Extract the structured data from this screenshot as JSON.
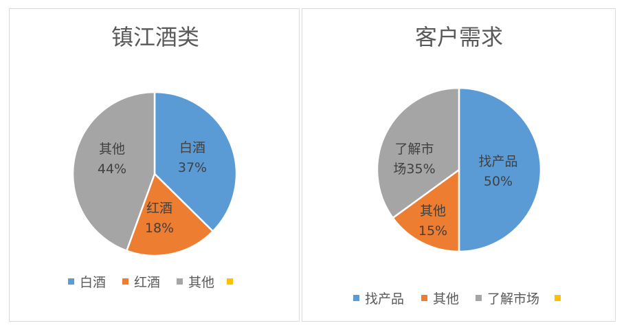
{
  "chart_data": [
    {
      "type": "pie",
      "title": "镇江酒类",
      "categories": [
        "白酒",
        "红酒",
        "其他"
      ],
      "values": [
        37,
        18,
        44
      ],
      "value_labels": [
        "37%",
        "18%",
        "44%"
      ],
      "colors": [
        "#5b9bd5",
        "#ed7d31",
        "#a5a5a5"
      ],
      "legend": {
        "position": "bottom",
        "entries": [
          {
            "label": "白酒",
            "color": "#5b9bd5"
          },
          {
            "label": "红酒",
            "color": "#ed7d31"
          },
          {
            "label": "其他",
            "color": "#a5a5a5"
          },
          {
            "label": "",
            "color": "#ffc000"
          }
        ]
      }
    },
    {
      "type": "pie",
      "title": "客户需求",
      "categories": [
        "找产品",
        "其他",
        "了解市场"
      ],
      "values": [
        50,
        15,
        35
      ],
      "value_labels": [
        "50%",
        "15%",
        "35%"
      ],
      "colors": [
        "#5b9bd5",
        "#ed7d31",
        "#a5a5a5"
      ],
      "legend": {
        "position": "bottom",
        "entries": [
          {
            "label": "找产品",
            "color": "#5b9bd5"
          },
          {
            "label": "其他",
            "color": "#ed7d31"
          },
          {
            "label": "了解市场",
            "color": "#a5a5a5"
          },
          {
            "label": "",
            "color": "#ffc000"
          }
        ]
      }
    }
  ]
}
